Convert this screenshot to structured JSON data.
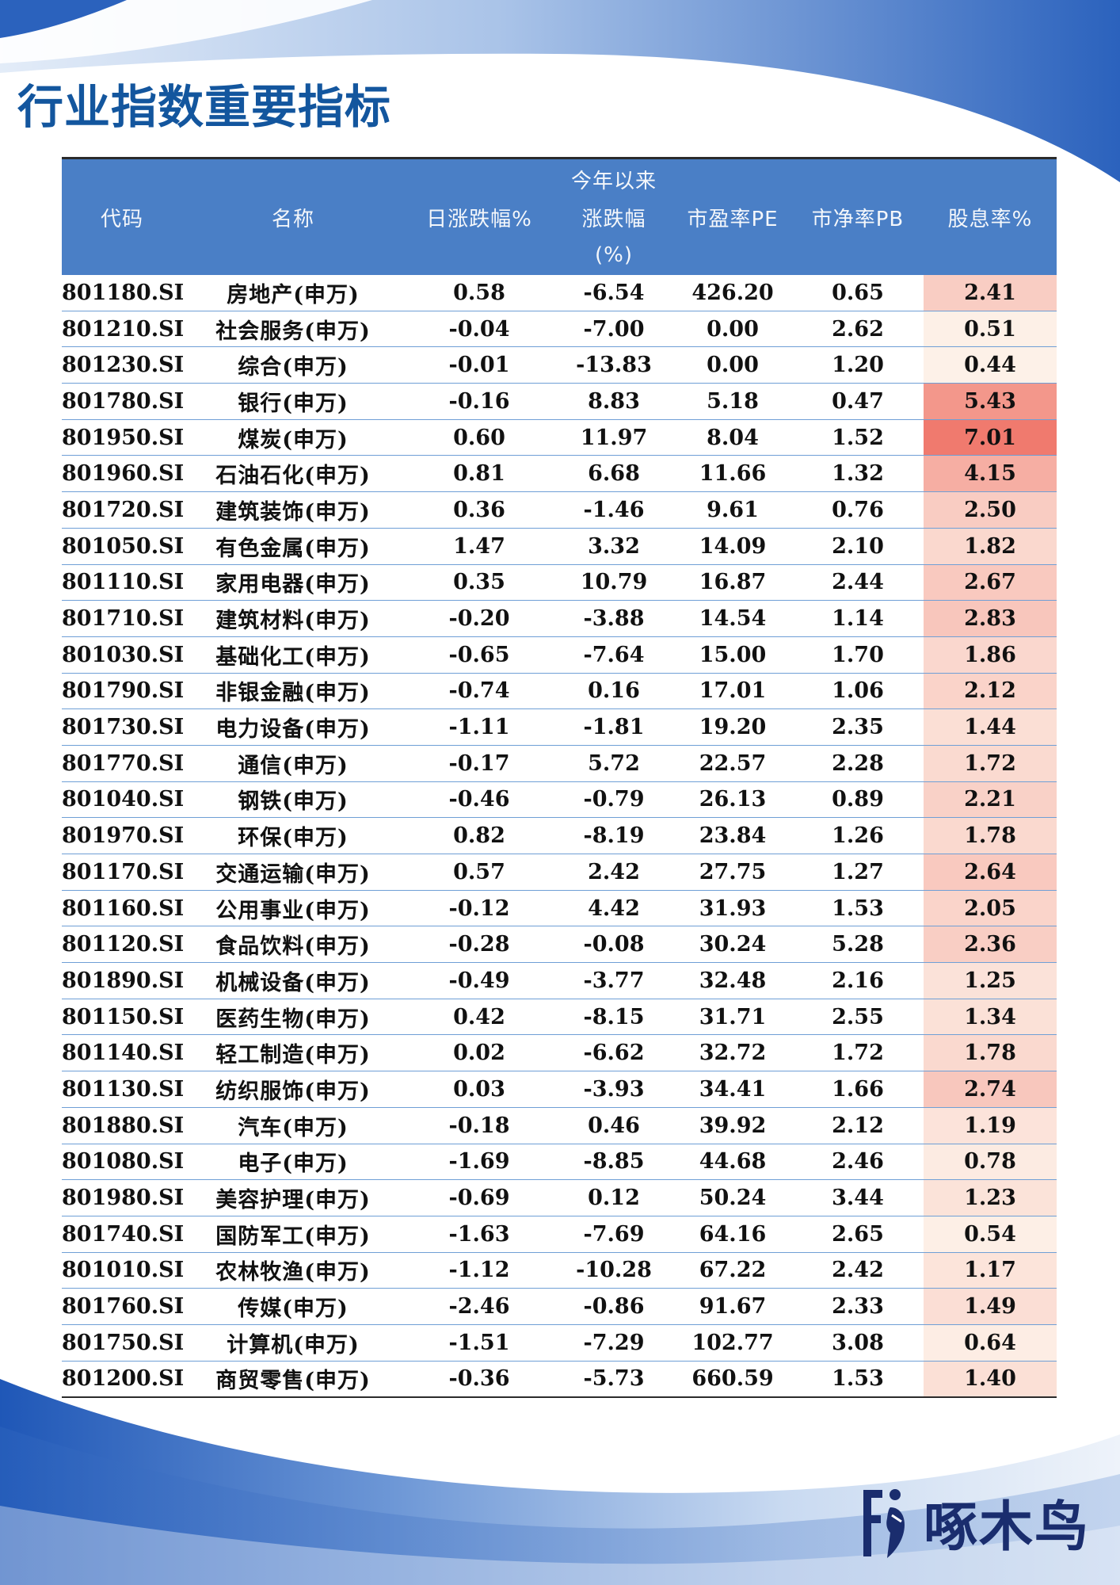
{
  "page": {
    "title": "行业指数重要指标"
  },
  "table": {
    "headers": {
      "code": "代码",
      "name": "名称",
      "change_day": "日涨跌幅%",
      "ytd_top": "今年以来",
      "ytd_mid": "涨跌幅",
      "ytd_bot": "(%)",
      "pe": "市盈率PE",
      "pb": "市净率PB",
      "dividend": "股息率%"
    },
    "rows": [
      {
        "code": "801180.SI",
        "name": "房地产(申万)",
        "change_day": "0.58",
        "ytd": "-6.54",
        "pe": "426.20",
        "pb": "0.65",
        "dividend": "2.41"
      },
      {
        "code": "801210.SI",
        "name": "社会服务(申万)",
        "change_day": "-0.04",
        "ytd": "-7.00",
        "pe": "0.00",
        "pb": "2.62",
        "dividend": "0.51"
      },
      {
        "code": "801230.SI",
        "name": "综合(申万)",
        "change_day": "-0.01",
        "ytd": "-13.83",
        "pe": "0.00",
        "pb": "1.20",
        "dividend": "0.44"
      },
      {
        "code": "801780.SI",
        "name": "银行(申万)",
        "change_day": "-0.16",
        "ytd": "8.83",
        "pe": "5.18",
        "pb": "0.47",
        "dividend": "5.43"
      },
      {
        "code": "801950.SI",
        "name": "煤炭(申万)",
        "change_day": "0.60",
        "ytd": "11.97",
        "pe": "8.04",
        "pb": "1.52",
        "dividend": "7.01"
      },
      {
        "code": "801960.SI",
        "name": "石油石化(申万)",
        "change_day": "0.81",
        "ytd": "6.68",
        "pe": "11.66",
        "pb": "1.32",
        "dividend": "4.15"
      },
      {
        "code": "801720.SI",
        "name": "建筑装饰(申万)",
        "change_day": "0.36",
        "ytd": "-1.46",
        "pe": "9.61",
        "pb": "0.76",
        "dividend": "2.50"
      },
      {
        "code": "801050.SI",
        "name": "有色金属(申万)",
        "change_day": "1.47",
        "ytd": "3.32",
        "pe": "14.09",
        "pb": "2.10",
        "dividend": "1.82"
      },
      {
        "code": "801110.SI",
        "name": "家用电器(申万)",
        "change_day": "0.35",
        "ytd": "10.79",
        "pe": "16.87",
        "pb": "2.44",
        "dividend": "2.67"
      },
      {
        "code": "801710.SI",
        "name": "建筑材料(申万)",
        "change_day": "-0.20",
        "ytd": "-3.88",
        "pe": "14.54",
        "pb": "1.14",
        "dividend": "2.83"
      },
      {
        "code": "801030.SI",
        "name": "基础化工(申万)",
        "change_day": "-0.65",
        "ytd": "-7.64",
        "pe": "15.00",
        "pb": "1.70",
        "dividend": "1.86"
      },
      {
        "code": "801790.SI",
        "name": "非银金融(申万)",
        "change_day": "-0.74",
        "ytd": "0.16",
        "pe": "17.01",
        "pb": "1.06",
        "dividend": "2.12"
      },
      {
        "code": "801730.SI",
        "name": "电力设备(申万)",
        "change_day": "-1.11",
        "ytd": "-1.81",
        "pe": "19.20",
        "pb": "2.35",
        "dividend": "1.44"
      },
      {
        "code": "801770.SI",
        "name": "通信(申万)",
        "change_day": "-0.17",
        "ytd": "5.72",
        "pe": "22.57",
        "pb": "2.28",
        "dividend": "1.72"
      },
      {
        "code": "801040.SI",
        "name": "钢铁(申万)",
        "change_day": "-0.46",
        "ytd": "-0.79",
        "pe": "26.13",
        "pb": "0.89",
        "dividend": "2.21"
      },
      {
        "code": "801970.SI",
        "name": "环保(申万)",
        "change_day": "0.82",
        "ytd": "-8.19",
        "pe": "23.84",
        "pb": "1.26",
        "dividend": "1.78"
      },
      {
        "code": "801170.SI",
        "name": "交通运输(申万)",
        "change_day": "0.57",
        "ytd": "2.42",
        "pe": "27.75",
        "pb": "1.27",
        "dividend": "2.64"
      },
      {
        "code": "801160.SI",
        "name": "公用事业(申万)",
        "change_day": "-0.12",
        "ytd": "4.42",
        "pe": "31.93",
        "pb": "1.53",
        "dividend": "2.05"
      },
      {
        "code": "801120.SI",
        "name": "食品饮料(申万)",
        "change_day": "-0.28",
        "ytd": "-0.08",
        "pe": "30.24",
        "pb": "5.28",
        "dividend": "2.36"
      },
      {
        "code": "801890.SI",
        "name": "机械设备(申万)",
        "change_day": "-0.49",
        "ytd": "-3.77",
        "pe": "32.48",
        "pb": "2.16",
        "dividend": "1.25"
      },
      {
        "code": "801150.SI",
        "name": "医药生物(申万)",
        "change_day": "0.42",
        "ytd": "-8.15",
        "pe": "31.71",
        "pb": "2.55",
        "dividend": "1.34"
      },
      {
        "code": "801140.SI",
        "name": "轻工制造(申万)",
        "change_day": "0.02",
        "ytd": "-6.62",
        "pe": "32.72",
        "pb": "1.72",
        "dividend": "1.78"
      },
      {
        "code": "801130.SI",
        "name": "纺织服饰(申万)",
        "change_day": "0.03",
        "ytd": "-3.93",
        "pe": "34.41",
        "pb": "1.66",
        "dividend": "2.74"
      },
      {
        "code": "801880.SI",
        "name": "汽车(申万)",
        "change_day": "-0.18",
        "ytd": "0.46",
        "pe": "39.92",
        "pb": "2.12",
        "dividend": "1.19"
      },
      {
        "code": "801080.SI",
        "name": "电子(申万)",
        "change_day": "-1.69",
        "ytd": "-8.85",
        "pe": "44.68",
        "pb": "2.46",
        "dividend": "0.78"
      },
      {
        "code": "801980.SI",
        "name": "美容护理(申万)",
        "change_day": "-0.69",
        "ytd": "0.12",
        "pe": "50.24",
        "pb": "3.44",
        "dividend": "1.23"
      },
      {
        "code": "801740.SI",
        "name": "国防军工(申万)",
        "change_day": "-1.63",
        "ytd": "-7.69",
        "pe": "64.16",
        "pb": "2.65",
        "dividend": "0.54"
      },
      {
        "code": "801010.SI",
        "name": "农林牧渔(申万)",
        "change_day": "-1.12",
        "ytd": "-10.28",
        "pe": "67.22",
        "pb": "2.42",
        "dividend": "1.17"
      },
      {
        "code": "801760.SI",
        "name": "传媒(申万)",
        "change_day": "-2.46",
        "ytd": "-0.86",
        "pe": "91.67",
        "pb": "2.33",
        "dividend": "1.49"
      },
      {
        "code": "801750.SI",
        "name": "计算机(申万)",
        "change_day": "-1.51",
        "ytd": "-7.29",
        "pe": "102.77",
        "pb": "3.08",
        "dividend": "0.64"
      },
      {
        "code": "801200.SI",
        "name": "商贸零售(申万)",
        "change_day": "-0.36",
        "ytd": "-5.73",
        "pe": "660.59",
        "pb": "1.53",
        "dividend": "1.40"
      }
    ]
  },
  "colors": {
    "brand_blue": "#13569e",
    "header_blue": "#4a7fc6",
    "up_red": "#e0141e",
    "down_green": "#1a8f2c",
    "heat_low": "#fdf1e8",
    "heat_high": "#f07a6e"
  },
  "logo": {
    "text": "啄木鸟",
    "icon": "woodpecker-icon"
  }
}
